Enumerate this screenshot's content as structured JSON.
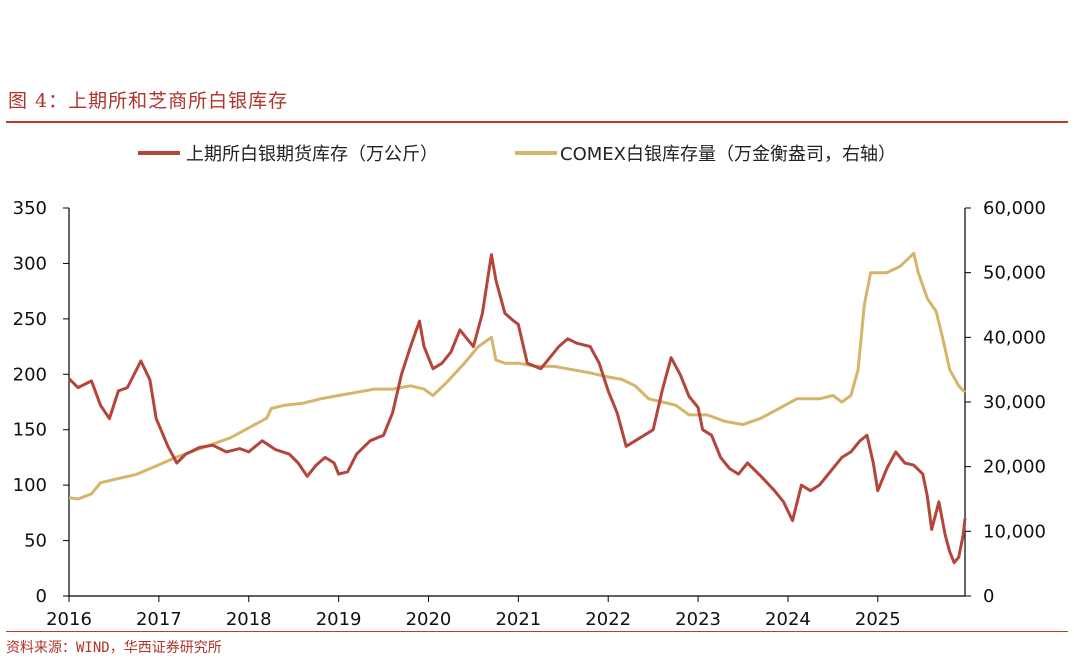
{
  "figure_title": "图 4：上期所和芝商所白银库存",
  "source": "资料来源：WIND，华西证券研究所",
  "colors": {
    "shfe": "#b5443a",
    "comex": "#d4b56a",
    "accent": "#c0392b"
  },
  "chart_data": {
    "type": "line",
    "title": "",
    "xlabel": "",
    "ylabel": "",
    "y2label": "",
    "x_ticks": [
      "2016",
      "2017",
      "2018",
      "2019",
      "2020",
      "2021",
      "2022",
      "2023",
      "2024",
      "2025"
    ],
    "xlim": [
      2016.0,
      2025.97
    ],
    "ylim": [
      0,
      350
    ],
    "y_ticks": [
      "0",
      "50",
      "100",
      "150",
      "200",
      "250",
      "300",
      "350"
    ],
    "y2lim": [
      0,
      60000
    ],
    "y2_ticks": [
      "0",
      "10,000",
      "20,000",
      "30,000",
      "40,000",
      "50,000",
      "60,000"
    ],
    "legend": "top",
    "grid": false,
    "series": [
      {
        "name": "上期所白银期货库存（万公斤）",
        "axis": "left",
        "points": [
          [
            2016.0,
            196
          ],
          [
            2016.1,
            188
          ],
          [
            2016.25,
            194
          ],
          [
            2016.35,
            172
          ],
          [
            2016.45,
            160
          ],
          [
            2016.55,
            185
          ],
          [
            2016.65,
            188
          ],
          [
            2016.8,
            212
          ],
          [
            2016.9,
            195
          ],
          [
            2016.97,
            160
          ],
          [
            2017.1,
            135
          ],
          [
            2017.2,
            120
          ],
          [
            2017.3,
            128
          ],
          [
            2017.45,
            134
          ],
          [
            2017.6,
            136
          ],
          [
            2017.75,
            130
          ],
          [
            2017.9,
            133
          ],
          [
            2018.0,
            130
          ],
          [
            2018.15,
            140
          ],
          [
            2018.3,
            132
          ],
          [
            2018.45,
            128
          ],
          [
            2018.55,
            120
          ],
          [
            2018.65,
            108
          ],
          [
            2018.75,
            118
          ],
          [
            2018.85,
            125
          ],
          [
            2018.95,
            120
          ],
          [
            2019.0,
            110
          ],
          [
            2019.1,
            112
          ],
          [
            2019.2,
            128
          ],
          [
            2019.35,
            140
          ],
          [
            2019.5,
            145
          ],
          [
            2019.6,
            165
          ],
          [
            2019.7,
            200
          ],
          [
            2019.8,
            225
          ],
          [
            2019.9,
            248
          ],
          [
            2019.95,
            225
          ],
          [
            2020.05,
            205
          ],
          [
            2020.15,
            210
          ],
          [
            2020.25,
            220
          ],
          [
            2020.35,
            240
          ],
          [
            2020.5,
            225
          ],
          [
            2020.6,
            255
          ],
          [
            2020.7,
            308
          ],
          [
            2020.75,
            285
          ],
          [
            2020.85,
            255
          ],
          [
            2020.95,
            248
          ],
          [
            2021.0,
            245
          ],
          [
            2021.1,
            210
          ],
          [
            2021.25,
            205
          ],
          [
            2021.35,
            215
          ],
          [
            2021.45,
            225
          ],
          [
            2021.55,
            232
          ],
          [
            2021.65,
            228
          ],
          [
            2021.8,
            225
          ],
          [
            2021.9,
            210
          ],
          [
            2022.0,
            185
          ],
          [
            2022.1,
            165
          ],
          [
            2022.2,
            135
          ],
          [
            2022.3,
            140
          ],
          [
            2022.4,
            145
          ],
          [
            2022.5,
            150
          ],
          [
            2022.6,
            185
          ],
          [
            2022.7,
            215
          ],
          [
            2022.8,
            200
          ],
          [
            2022.9,
            180
          ],
          [
            2023.0,
            170
          ],
          [
            2023.05,
            150
          ],
          [
            2023.15,
            145
          ],
          [
            2023.25,
            125
          ],
          [
            2023.35,
            115
          ],
          [
            2023.45,
            110
          ],
          [
            2023.55,
            120
          ],
          [
            2023.7,
            108
          ],
          [
            2023.85,
            95
          ],
          [
            2023.95,
            85
          ],
          [
            2024.05,
            68
          ],
          [
            2024.15,
            100
          ],
          [
            2024.25,
            95
          ],
          [
            2024.35,
            100
          ],
          [
            2024.5,
            115
          ],
          [
            2024.6,
            125
          ],
          [
            2024.7,
            130
          ],
          [
            2024.8,
            140
          ],
          [
            2024.88,
            145
          ],
          [
            2024.95,
            120
          ],
          [
            2025.0,
            95
          ],
          [
            2025.1,
            115
          ],
          [
            2025.2,
            130
          ],
          [
            2025.3,
            120
          ],
          [
            2025.4,
            118
          ],
          [
            2025.5,
            110
          ],
          [
            2025.55,
            90
          ],
          [
            2025.6,
            60
          ],
          [
            2025.68,
            85
          ],
          [
            2025.75,
            55
          ],
          [
            2025.8,
            40
          ],
          [
            2025.85,
            30
          ],
          [
            2025.9,
            35
          ],
          [
            2025.95,
            55
          ],
          [
            2025.97,
            70
          ]
        ]
      },
      {
        "name": "COMEX白银库存量（万金衡盎司，右轴）",
        "axis": "right",
        "points": [
          [
            2016.0,
            15200
          ],
          [
            2016.1,
            15000
          ],
          [
            2016.25,
            15800
          ],
          [
            2016.35,
            17500
          ],
          [
            2016.5,
            18000
          ],
          [
            2016.75,
            18800
          ],
          [
            2016.95,
            20000
          ],
          [
            2017.2,
            21500
          ],
          [
            2017.5,
            23000
          ],
          [
            2017.8,
            24500
          ],
          [
            2018.0,
            26000
          ],
          [
            2018.2,
            27500
          ],
          [
            2018.25,
            29000
          ],
          [
            2018.4,
            29500
          ],
          [
            2018.6,
            29800
          ],
          [
            2018.8,
            30500
          ],
          [
            2019.0,
            31000
          ],
          [
            2019.2,
            31500
          ],
          [
            2019.4,
            32000
          ],
          [
            2019.6,
            32000
          ],
          [
            2019.8,
            32500
          ],
          [
            2019.95,
            32000
          ],
          [
            2020.05,
            31000
          ],
          [
            2020.2,
            33000
          ],
          [
            2020.4,
            36000
          ],
          [
            2020.55,
            38500
          ],
          [
            2020.7,
            40000
          ],
          [
            2020.75,
            36500
          ],
          [
            2020.85,
            36000
          ],
          [
            2021.0,
            36000
          ],
          [
            2021.2,
            35500
          ],
          [
            2021.4,
            35500
          ],
          [
            2021.6,
            35000
          ],
          [
            2021.8,
            34500
          ],
          [
            2021.95,
            34000
          ],
          [
            2022.15,
            33500
          ],
          [
            2022.3,
            32500
          ],
          [
            2022.45,
            30500
          ],
          [
            2022.6,
            30000
          ],
          [
            2022.75,
            29500
          ],
          [
            2022.9,
            28000
          ],
          [
            2023.1,
            28000
          ],
          [
            2023.3,
            27000
          ],
          [
            2023.5,
            26500
          ],
          [
            2023.7,
            27500
          ],
          [
            2023.9,
            29000
          ],
          [
            2024.1,
            30500
          ],
          [
            2024.35,
            30500
          ],
          [
            2024.5,
            31000
          ],
          [
            2024.6,
            30000
          ],
          [
            2024.7,
            31000
          ],
          [
            2024.78,
            35000
          ],
          [
            2024.85,
            45000
          ],
          [
            2024.92,
            50000
          ],
          [
            2025.1,
            50000
          ],
          [
            2025.25,
            51000
          ],
          [
            2025.4,
            53000
          ],
          [
            2025.45,
            50000
          ],
          [
            2025.55,
            46000
          ],
          [
            2025.65,
            44000
          ],
          [
            2025.72,
            40000
          ],
          [
            2025.8,
            35000
          ],
          [
            2025.9,
            32500
          ],
          [
            2025.97,
            31500
          ]
        ]
      }
    ]
  }
}
